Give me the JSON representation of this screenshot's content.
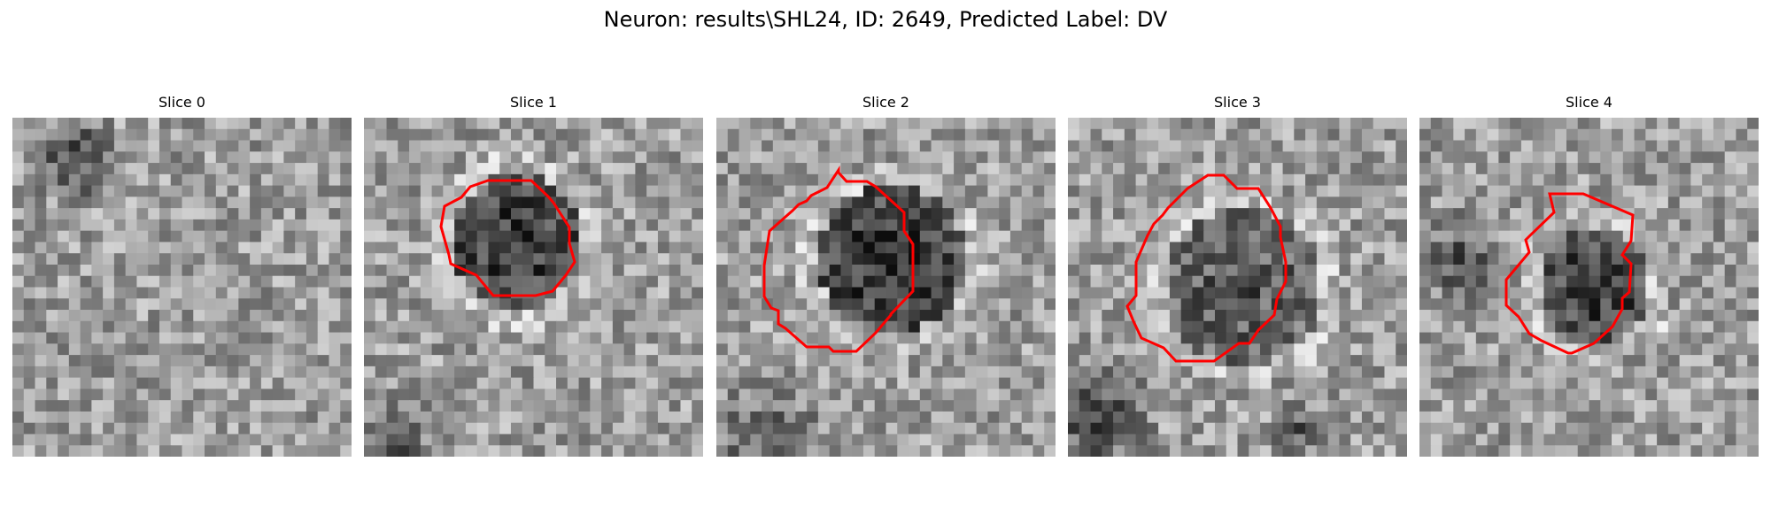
{
  "figure": {
    "title": "Neuron: results\\SHL24, ID: 2649, Predicted Label: DV"
  },
  "panels": [
    {
      "title": "Slice 0",
      "has_contour": false
    },
    {
      "title": "Slice 1",
      "has_contour": true
    },
    {
      "title": "Slice 2",
      "has_contour": true
    },
    {
      "title": "Slice 3",
      "has_contour": true
    },
    {
      "title": "Slice 4",
      "has_contour": true
    }
  ],
  "colors": {
    "contour": "#ff0000",
    "background": "#ffffff",
    "colormap": "gray"
  }
}
